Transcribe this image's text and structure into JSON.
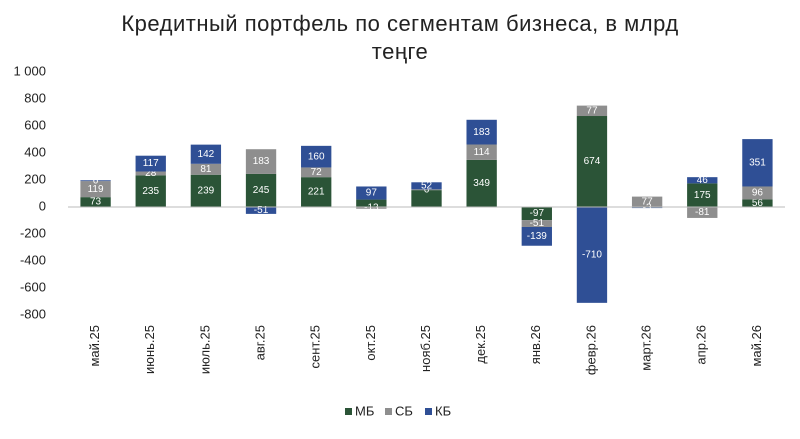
{
  "chart_data": {
    "type": "stacked-bar",
    "title": "Кредитный портфель по сегментам бизнеса, в млрд теңге",
    "categories": [
      "май.25",
      "июнь.25",
      "июль.25",
      "авг.25",
      "сент.25",
      "окт.25",
      "нояб.25",
      "дек.25",
      "янв.26",
      "февр.26",
      "март.26",
      "апр.26",
      "май.26"
    ],
    "series": [
      {
        "name": "МБ",
        "color": "#2b5437",
        "values": [
          73,
          235,
          239,
          245,
          221,
          55,
          125,
          349,
          -97,
          674,
          -5,
          175,
          56
        ],
        "value_labels": [
          "73",
          "235",
          "239",
          "245",
          "221",
          null,
          null,
          "349",
          "-97",
          "674",
          "-5",
          "175",
          "56"
        ]
      },
      {
        "name": "СБ",
        "color": "#8e8e8e",
        "values": [
          119,
          28,
          81,
          183,
          72,
          -13,
          6,
          114,
          -51,
          77,
          77,
          -81,
          96
        ],
        "value_labels": [
          "119",
          "28",
          "81",
          "183",
          "72",
          "-13",
          "6",
          "114",
          "-51",
          "77",
          "77",
          "-81",
          "96"
        ]
      },
      {
        "name": "КБ",
        "color": "#2f4f95",
        "values": [
          6,
          117,
          142,
          -51,
          160,
          97,
          52,
          183,
          -139,
          -710,
          -3,
          46,
          351
        ],
        "value_labels": [
          "6",
          "117",
          "142",
          "-51",
          "160",
          "97",
          "52",
          "183",
          "-139",
          "-710",
          "-3",
          "46",
          "351"
        ]
      }
    ],
    "ylim": [
      -800,
      1000
    ],
    "yticks": [
      -800,
      -600,
      -400,
      -200,
      0,
      200,
      400,
      600,
      800,
      {
        "value": 1000,
        "label": "1 000"
      }
    ],
    "legend": "bottom"
  }
}
